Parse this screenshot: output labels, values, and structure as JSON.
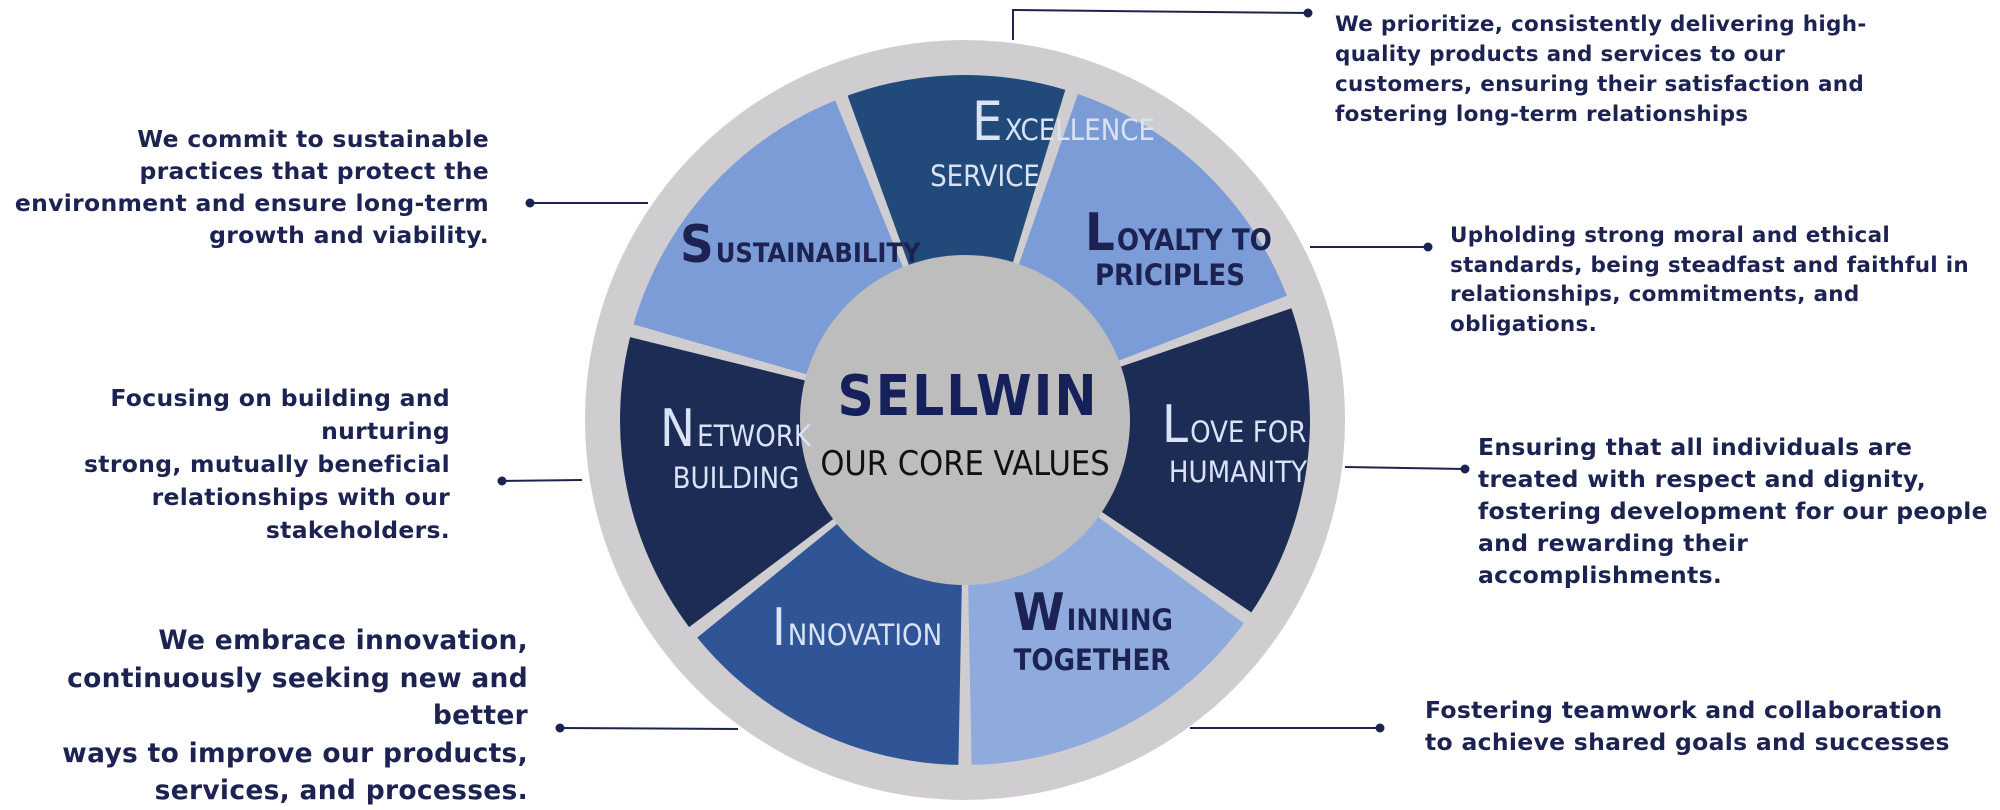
{
  "center": {
    "title": "SELLWIN",
    "subtitle": "OUR CORE VALUES"
  },
  "colors": {
    "ring": "#cfcdd0",
    "hub": "#bdbdbd",
    "dark_navy": "#1c2c55",
    "navy": "#214a7a",
    "mid_blue": "#2f5597",
    "light_blue": "#7b9cd6",
    "lighter_blue": "#8faadc",
    "text_dark": "#1c2353",
    "text_light": "#d9e3f5"
  },
  "segments": [
    {
      "id": "excellence",
      "initial": "E",
      "line1": "XCELLENCE",
      "line2": "SERVICE"
    },
    {
      "id": "loyalty",
      "initial": "L",
      "line1": "OYALTY TO",
      "line2": "PRICIPLES"
    },
    {
      "id": "love",
      "initial": "L",
      "line1": "OVE FOR",
      "line2": "HUMANITY"
    },
    {
      "id": "winning",
      "initial": "W",
      "line1": "INNING",
      "line2": "TOGETHER"
    },
    {
      "id": "innovation",
      "initial": "I",
      "line1": "NNOVATION",
      "line2": ""
    },
    {
      "id": "network",
      "initial": "N",
      "line1": "ETWORK",
      "line2": "BUILDING"
    },
    {
      "id": "sustainability",
      "initial": "S",
      "line1": "USTAINABILITY",
      "line2": ""
    }
  ],
  "descriptions": {
    "excellence": "We prioritize, consistently delivering high-\nquality products and services to our\ncustomers, ensuring their satisfaction and\nfostering long-term relationships",
    "loyalty": "Upholding strong moral and ethical\nstandards, being steadfast and faithful in\nrelationships, commitments, and\nobligations.",
    "love": "Ensuring that all individuals are\ntreated with respect and dignity,\nfostering development for our people\nand rewarding their accomplishments.",
    "winning": "Fostering teamwork and collaboration\nto achieve shared goals and successes",
    "innovation": "We embrace innovation,\ncontinuously seeking new and better\nways to improve our products,\nservices, and processes.",
    "network": "Focusing on building and nurturing\nstrong, mutually beneficial\nrelationships with our\nstakeholders.",
    "sustainability": "We commit to sustainable\npractices that protect the\nenvironment and ensure long-term\ngrowth and viability."
  }
}
